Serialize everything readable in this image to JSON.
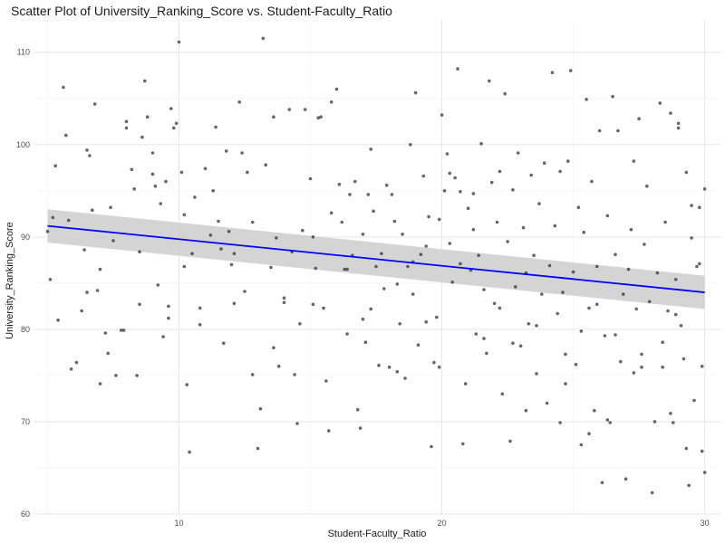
{
  "chart_data": {
    "type": "scatter",
    "title": "Scatter Plot of University_Ranking_Score vs. Student-Faculty_Ratio",
    "xlabel": "Student-Faculty_Ratio",
    "ylabel": "University_Ranking_Score",
    "xlim": [
      4.5,
      30.6
    ],
    "ylim": [
      60,
      113.5
    ],
    "xticks": [
      10,
      20,
      30
    ],
    "yticks": [
      60,
      70,
      80,
      90,
      100,
      110
    ],
    "grid": true,
    "point_color": "#333333",
    "trend_color": "#0000ff",
    "band_color": "#cccccc",
    "trend": {
      "x": [
        5,
        30
      ],
      "y": [
        91.2,
        84.0
      ],
      "ci_lower": [
        89.4,
        82.2
      ],
      "ci_upper": [
        93.0,
        85.8
      ]
    },
    "points": [
      [
        5.0,
        90.6
      ],
      [
        5.1,
        85.4
      ],
      [
        5.2,
        92.1
      ],
      [
        5.3,
        97.7
      ],
      [
        5.4,
        81.0
      ],
      [
        5.6,
        106.2
      ],
      [
        5.7,
        101.0
      ],
      [
        5.8,
        91.8
      ],
      [
        5.9,
        75.7
      ],
      [
        6.1,
        76.4
      ],
      [
        6.3,
        82.0
      ],
      [
        6.4,
        88.6
      ],
      [
        6.5,
        99.4
      ],
      [
        6.6,
        98.8
      ],
      [
        6.7,
        92.9
      ],
      [
        6.8,
        104.4
      ],
      [
        6.9,
        84.2
      ],
      [
        7.0,
        74.1
      ],
      [
        7.2,
        79.6
      ],
      [
        7.3,
        77.4
      ],
      [
        7.4,
        93.2
      ],
      [
        7.6,
        75.0
      ],
      [
        7.8,
        79.9
      ],
      [
        7.9,
        79.9
      ],
      [
        8.0,
        101.8
      ],
      [
        8.2,
        97.3
      ],
      [
        8.3,
        95.2
      ],
      [
        8.4,
        75.0
      ],
      [
        8.5,
        82.7
      ],
      [
        8.6,
        100.8
      ],
      [
        8.7,
        106.9
      ],
      [
        8.8,
        103.0
      ],
      [
        9.0,
        96.8
      ],
      [
        9.1,
        95.5
      ],
      [
        9.2,
        84.8
      ],
      [
        9.3,
        93.6
      ],
      [
        9.4,
        79.2
      ],
      [
        9.5,
        96.0
      ],
      [
        9.6,
        81.2
      ],
      [
        9.7,
        103.9
      ],
      [
        9.8,
        101.8
      ],
      [
        9.9,
        102.3
      ],
      [
        10.0,
        111.1
      ],
      [
        10.1,
        97.0
      ],
      [
        10.2,
        92.4
      ],
      [
        10.3,
        74.0
      ],
      [
        10.4,
        66.7
      ],
      [
        10.5,
        88.2
      ],
      [
        10.6,
        94.3
      ],
      [
        10.8,
        80.5
      ],
      [
        11.0,
        97.4
      ],
      [
        11.2,
        90.2
      ],
      [
        11.4,
        101.9
      ],
      [
        11.5,
        91.7
      ],
      [
        11.6,
        88.7
      ],
      [
        11.7,
        78.5
      ],
      [
        11.8,
        99.3
      ],
      [
        11.9,
        90.6
      ],
      [
        12.0,
        87.0
      ],
      [
        12.1,
        82.8
      ],
      [
        12.3,
        104.6
      ],
      [
        12.4,
        99.1
      ],
      [
        12.5,
        84.1
      ],
      [
        12.6,
        97.0
      ],
      [
        12.8,
        91.6
      ],
      [
        13.0,
        67.1
      ],
      [
        13.1,
        71.4
      ],
      [
        13.2,
        111.5
      ],
      [
        13.3,
        97.8
      ],
      [
        13.5,
        86.7
      ],
      [
        13.6,
        103.0
      ],
      [
        13.7,
        89.9
      ],
      [
        13.8,
        76.0
      ],
      [
        14.0,
        82.9
      ],
      [
        14.2,
        103.8
      ],
      [
        14.3,
        88.4
      ],
      [
        14.4,
        75.1
      ],
      [
        14.5,
        69.8
      ],
      [
        14.7,
        90.7
      ],
      [
        14.8,
        103.8
      ],
      [
        15.0,
        96.3
      ],
      [
        15.1,
        82.7
      ],
      [
        15.2,
        86.6
      ],
      [
        15.3,
        102.9
      ],
      [
        15.4,
        103.0
      ],
      [
        15.5,
        82.3
      ],
      [
        15.6,
        74.4
      ],
      [
        15.7,
        69.0
      ],
      [
        15.8,
        104.6
      ],
      [
        16.0,
        106.0
      ],
      [
        16.1,
        95.7
      ],
      [
        16.2,
        91.6
      ],
      [
        16.3,
        86.5
      ],
      [
        16.4,
        79.5
      ],
      [
        16.5,
        94.6
      ],
      [
        16.6,
        88.0
      ],
      [
        16.7,
        96.0
      ],
      [
        16.8,
        71.3
      ],
      [
        16.9,
        69.3
      ],
      [
        17.0,
        90.3
      ],
      [
        17.1,
        78.6
      ],
      [
        17.2,
        94.6
      ],
      [
        17.3,
        99.5
      ],
      [
        17.4,
        92.8
      ],
      [
        17.5,
        86.8
      ],
      [
        17.6,
        76.1
      ],
      [
        17.7,
        88.2
      ],
      [
        17.8,
        84.4
      ],
      [
        17.9,
        95.6
      ],
      [
        18.0,
        75.9
      ],
      [
        18.1,
        94.6
      ],
      [
        18.2,
        91.7
      ],
      [
        18.3,
        75.4
      ],
      [
        18.4,
        80.6
      ],
      [
        18.5,
        90.3
      ],
      [
        18.6,
        74.7
      ],
      [
        18.7,
        86.8
      ],
      [
        18.8,
        100.0
      ],
      [
        18.9,
        87.3
      ],
      [
        19.0,
        105.6
      ],
      [
        19.1,
        78.3
      ],
      [
        19.2,
        88.1
      ],
      [
        19.3,
        96.6
      ],
      [
        19.4,
        80.8
      ],
      [
        19.5,
        92.2
      ],
      [
        19.6,
        67.3
      ],
      [
        19.7,
        76.4
      ],
      [
        19.8,
        81.3
      ],
      [
        19.9,
        75.9
      ],
      [
        20.0,
        103.2
      ],
      [
        20.1,
        95.0
      ],
      [
        20.2,
        99.0
      ],
      [
        20.3,
        89.3
      ],
      [
        20.4,
        85.1
      ],
      [
        20.5,
        96.4
      ],
      [
        20.6,
        108.2
      ],
      [
        20.7,
        87.1
      ],
      [
        20.8,
        67.6
      ],
      [
        20.9,
        74.1
      ],
      [
        21.0,
        93.1
      ],
      [
        21.1,
        86.4
      ],
      [
        21.2,
        90.8
      ],
      [
        21.3,
        79.5
      ],
      [
        21.4,
        88.0
      ],
      [
        21.5,
        100.1
      ],
      [
        21.6,
        84.3
      ],
      [
        21.7,
        77.4
      ],
      [
        21.8,
        106.9
      ],
      [
        21.9,
        95.9
      ],
      [
        22.0,
        82.8
      ],
      [
        22.1,
        91.6
      ],
      [
        22.2,
        97.1
      ],
      [
        22.3,
        73.0
      ],
      [
        22.4,
        105.5
      ],
      [
        22.5,
        89.5
      ],
      [
        22.6,
        67.9
      ],
      [
        22.7,
        95.1
      ],
      [
        22.8,
        84.6
      ],
      [
        22.9,
        99.1
      ],
      [
        23.0,
        78.2
      ],
      [
        23.1,
        91.0
      ],
      [
        23.2,
        86.1
      ],
      [
        23.3,
        80.6
      ],
      [
        23.4,
        96.7
      ],
      [
        23.5,
        88.0
      ],
      [
        23.6,
        75.2
      ],
      [
        23.7,
        93.6
      ],
      [
        23.8,
        83.8
      ],
      [
        23.9,
        98.0
      ],
      [
        24.0,
        72.0
      ],
      [
        24.1,
        86.9
      ],
      [
        24.2,
        107.8
      ],
      [
        24.3,
        91.2
      ],
      [
        24.4,
        81.7
      ],
      [
        24.5,
        97.1
      ],
      [
        24.6,
        84.0
      ],
      [
        24.7,
        77.3
      ],
      [
        24.8,
        98.2
      ],
      [
        24.9,
        108.0
      ],
      [
        25.0,
        86.2
      ],
      [
        25.1,
        76.2
      ],
      [
        25.2,
        93.2
      ],
      [
        25.3,
        79.8
      ],
      [
        25.4,
        90.5
      ],
      [
        25.5,
        104.9
      ],
      [
        25.6,
        82.3
      ],
      [
        25.7,
        96.0
      ],
      [
        25.8,
        71.2
      ],
      [
        25.9,
        86.8
      ],
      [
        26.0,
        101.5
      ],
      [
        26.1,
        63.4
      ],
      [
        26.2,
        79.3
      ],
      [
        26.3,
        92.3
      ],
      [
        26.4,
        69.9
      ],
      [
        26.5,
        105.2
      ],
      [
        26.6,
        88.1
      ],
      [
        26.7,
        101.5
      ],
      [
        26.8,
        76.5
      ],
      [
        26.9,
        83.8
      ],
      [
        27.0,
        63.8
      ],
      [
        27.1,
        86.5
      ],
      [
        27.2,
        90.8
      ],
      [
        27.3,
        98.2
      ],
      [
        27.4,
        82.2
      ],
      [
        27.5,
        102.8
      ],
      [
        27.6,
        77.3
      ],
      [
        27.7,
        89.2
      ],
      [
        27.8,
        95.5
      ],
      [
        27.9,
        83.0
      ],
      [
        28.0,
        62.3
      ],
      [
        28.1,
        70.0
      ],
      [
        28.2,
        86.1
      ],
      [
        28.3,
        104.5
      ],
      [
        28.4,
        78.6
      ],
      [
        28.5,
        91.6
      ],
      [
        28.6,
        82.0
      ],
      [
        28.7,
        103.4
      ],
      [
        28.8,
        69.9
      ],
      [
        28.9,
        85.4
      ],
      [
        29.0,
        101.8
      ],
      [
        29.1,
        80.4
      ],
      [
        29.2,
        76.8
      ],
      [
        29.3,
        97.0
      ],
      [
        29.4,
        63.1
      ],
      [
        29.5,
        89.9
      ],
      [
        29.6,
        72.3
      ],
      [
        29.7,
        86.8
      ],
      [
        29.8,
        93.2
      ],
      [
        29.9,
        76.0
      ],
      [
        30.0,
        95.2
      ],
      [
        27.6,
        75.9
      ],
      [
        29.9,
        66.8
      ],
      [
        29.3,
        67.1
      ],
      [
        30.0,
        64.5
      ],
      [
        29.5,
        93.4
      ],
      [
        29.8,
        87.1
      ],
      [
        28.9,
        81.6
      ],
      [
        29.0,
        102.3
      ],
      [
        28.7,
        70.9
      ],
      [
        28.4,
        75.9
      ],
      [
        27.3,
        75.3
      ],
      [
        26.6,
        79.4
      ],
      [
        26.3,
        70.2
      ],
      [
        25.9,
        82.7
      ],
      [
        25.6,
        68.7
      ],
      [
        25.3,
        67.5
      ],
      [
        24.7,
        74.1
      ],
      [
        24.5,
        69.9
      ],
      [
        23.2,
        71.2
      ],
      [
        23.6,
        80.4
      ],
      [
        22.2,
        82.3
      ],
      [
        22.7,
        78.5
      ],
      [
        21.6,
        79.0
      ],
      [
        21.2,
        94.7
      ],
      [
        20.3,
        96.9
      ],
      [
        20.7,
        94.9
      ],
      [
        19.9,
        91.9
      ],
      [
        19.4,
        89.0
      ],
      [
        18.9,
        83.8
      ],
      [
        18.3,
        84.9
      ],
      [
        17.3,
        82.2
      ],
      [
        17.0,
        81.1
      ],
      [
        16.4,
        86.5
      ],
      [
        15.8,
        92.6
      ],
      [
        15.1,
        90.0
      ],
      [
        14.6,
        80.6
      ],
      [
        14.0,
        83.4
      ],
      [
        13.6,
        78.0
      ],
      [
        12.8,
        75.1
      ],
      [
        12.1,
        88.2
      ],
      [
        11.3,
        95.0
      ],
      [
        10.8,
        82.3
      ],
      [
        10.2,
        86.8
      ],
      [
        9.6,
        82.5
      ],
      [
        9.0,
        99.1
      ],
      [
        8.5,
        88.4
      ],
      [
        8.0,
        102.5
      ],
      [
        7.5,
        89.6
      ],
      [
        7.0,
        86.5
      ],
      [
        6.5,
        84.0
      ]
    ]
  }
}
